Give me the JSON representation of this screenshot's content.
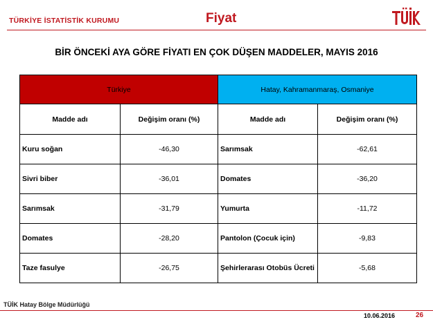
{
  "header": {
    "org": "TÜRKİYE İSTATİSTİK KURUMU",
    "section": "Fiyat",
    "logo_text": "TÜİK"
  },
  "title": "BİR ÖNCEKİ AYA GÖRE FİYATI EN ÇOK DÜŞEN MADDELER, MAYIS 2016",
  "table": {
    "regions": [
      "Türkiye",
      "Hatay, Kahramanmaraş, Osmaniye"
    ],
    "region_colors": [
      "#c00000",
      "#00b0f0"
    ],
    "columns": [
      "Madde adı",
      "Değişim oranı (%)",
      "Madde adı",
      "Değişim oranı (%)"
    ],
    "rows": [
      [
        "Kuru soğan",
        "-46,30",
        "Sarımsak",
        "-62,61"
      ],
      [
        "Sivri biber",
        "-36,01",
        "Domates",
        "-36,20"
      ],
      [
        "Sarımsak",
        "-31,79",
        "Yumurta",
        "-11,72"
      ],
      [
        "Domates",
        "-28,20",
        "Pantolon (Çocuk için)",
        "-9,83"
      ],
      [
        "Taze fasulye",
        "-26,75",
        "Şehirlerarası Otobüs Ücreti",
        "-5,68"
      ]
    ]
  },
  "footer": {
    "office": "TÜİK Hatay Bölge Müdürlüğü",
    "date": "10.06.2016",
    "page": "26"
  }
}
